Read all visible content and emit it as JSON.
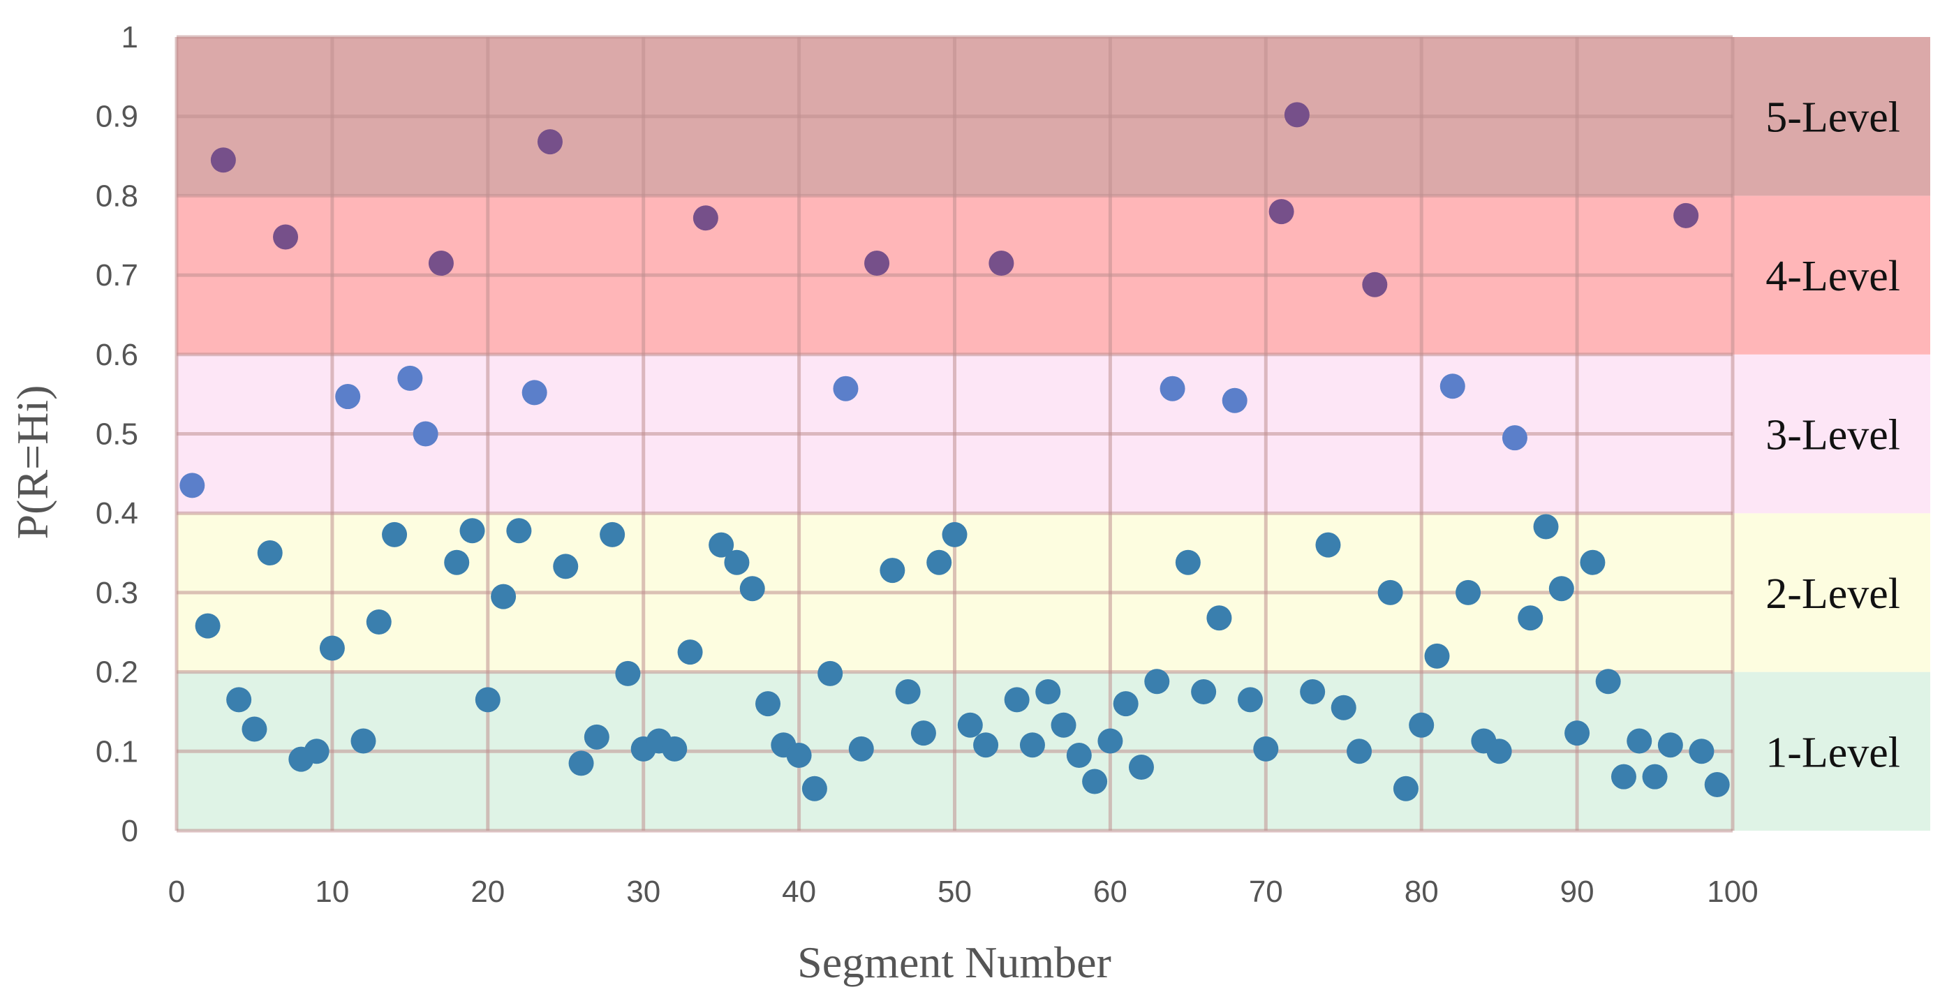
{
  "chart_data": {
    "type": "scatter",
    "title": "",
    "xlabel": "Segment Number",
    "ylabel": "P(R=Hi)",
    "xlim": [
      0,
      100
    ],
    "ylim": [
      0,
      1
    ],
    "grid": true,
    "x_ticks": [
      "0",
      "10",
      "20",
      "30",
      "40",
      "50",
      "60",
      "70",
      "80",
      "90",
      "100"
    ],
    "y_ticks": [
      "0",
      "0.1",
      "0.2",
      "0.3",
      "0.4",
      "0.5",
      "0.6",
      "0.7",
      "0.8",
      "0.9",
      "1"
    ],
    "bands": [
      {
        "label": "1-Level",
        "from": 0.0,
        "to": 0.2,
        "color": "#dff3e6"
      },
      {
        "label": "2-Level",
        "from": 0.2,
        "to": 0.4,
        "color": "#fdfde0"
      },
      {
        "label": "3-Level",
        "from": 0.4,
        "to": 0.6,
        "color": "#fde6f6"
      },
      {
        "label": "4-Level",
        "from": 0.6,
        "to": 0.8,
        "color": "#ffb6b8"
      },
      {
        "label": "5-Level",
        "from": 0.8,
        "to": 1.0,
        "color": "#dba9a9"
      }
    ],
    "series": [
      {
        "name": "P(R=Hi)",
        "colors": {
          "low": "#3a7fae",
          "mid": "#5b7fca",
          "high": "#76508a"
        },
        "x": [
          1,
          2,
          3,
          4,
          5,
          6,
          7,
          8,
          9,
          10,
          11,
          12,
          13,
          14,
          15,
          16,
          17,
          18,
          19,
          20,
          21,
          22,
          23,
          24,
          25,
          26,
          27,
          28,
          29,
          30,
          31,
          32,
          33,
          34,
          35,
          36,
          37,
          38,
          39,
          40,
          41,
          42,
          43,
          44,
          45,
          46,
          47,
          48,
          49,
          50,
          51,
          52,
          53,
          54,
          55,
          56,
          57,
          58,
          59,
          60,
          61,
          62,
          63,
          64,
          65,
          66,
          67,
          68,
          69,
          70,
          71,
          72,
          73,
          74,
          75,
          76,
          77,
          78,
          79,
          80,
          81,
          82,
          83,
          84,
          85,
          86,
          87,
          88,
          89,
          90,
          91,
          92,
          93,
          94,
          95,
          96,
          97,
          98,
          99
        ],
        "y": [
          0.435,
          0.258,
          0.845,
          0.165,
          0.128,
          0.35,
          0.748,
          0.09,
          0.1,
          0.23,
          0.547,
          0.113,
          0.263,
          0.373,
          0.57,
          0.5,
          0.715,
          0.338,
          0.378,
          0.165,
          0.295,
          0.378,
          0.552,
          0.868,
          0.333,
          0.085,
          0.118,
          0.373,
          0.198,
          0.103,
          0.113,
          0.103,
          0.225,
          0.772,
          0.36,
          0.338,
          0.305,
          0.16,
          0.108,
          0.095,
          0.053,
          0.198,
          0.557,
          0.103,
          0.715,
          0.328,
          0.175,
          0.123,
          0.338,
          0.373,
          0.133,
          0.108,
          0.715,
          0.165,
          0.108,
          0.175,
          0.133,
          0.095,
          0.062,
          0.113,
          0.16,
          0.08,
          0.188,
          0.557,
          0.338,
          0.175,
          0.268,
          0.542,
          0.165,
          0.103,
          0.78,
          0.902,
          0.175,
          0.36,
          0.155,
          0.1,
          0.688,
          0.3,
          0.053,
          0.133,
          0.22,
          0.56,
          0.3,
          0.113,
          0.1,
          0.495,
          0.268,
          0.383,
          0.305,
          0.123,
          0.338,
          0.188,
          0.068,
          0.113,
          0.068,
          0.108,
          0.775,
          0.1,
          0.058
        ]
      }
    ]
  }
}
